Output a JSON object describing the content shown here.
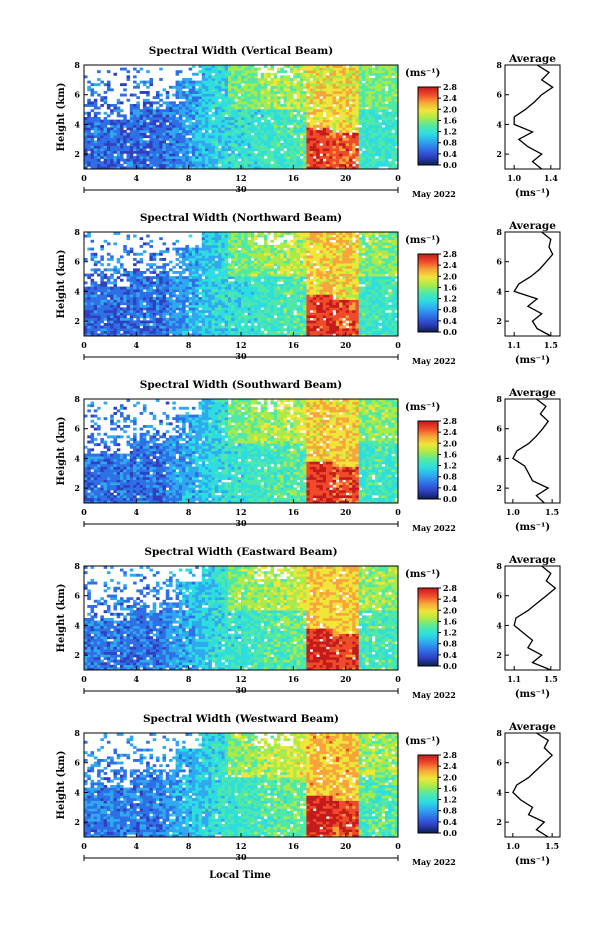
{
  "figure": {
    "xlabel": "Local Time",
    "month_label": "May 2022",
    "day_label": "30",
    "avg_title": "Average",
    "avg_xlabel": "(ms⁻¹)",
    "colorbar_unit": "(ms⁻¹)",
    "colorbar_ticks": [
      "0.0",
      "0.4",
      "0.8",
      "1.2",
      "1.6",
      "2.0",
      "2.4",
      "2.8"
    ],
    "colorbar_stops": [
      "#0b1f4f",
      "#2f3fbf",
      "#2f6fe6",
      "#2fa8f0",
      "#2ddde0",
      "#4fe8a8",
      "#a8ea4a",
      "#f0e63a",
      "#f7a53a",
      "#ef4b2b",
      "#c41a1a"
    ],
    "height_label": "Height (km)"
  },
  "chart_data": [
    {
      "type": "heatmap",
      "title": "Spectral Width (Vertical Beam)",
      "xlabel": "Local Time",
      "ylabel": "Height (km)",
      "x_ticks": [
        "0",
        "4",
        "8",
        "12",
        "16",
        "20",
        "0"
      ],
      "y_ticks": [
        "2",
        "4",
        "6",
        "8"
      ],
      "xlim": [
        0,
        24
      ],
      "ylim": [
        1,
        8
      ],
      "colorbar": {
        "label": "(ms⁻¹)",
        "range": [
          0.0,
          2.8
        ]
      },
      "average": {
        "title": "Average",
        "xlabel": "(ms⁻¹)",
        "x_ticks": [
          "1.0",
          "1.4"
        ],
        "xlim": [
          0.9,
          1.5
        ],
        "heights": [
          1,
          1.5,
          2,
          2.5,
          3,
          3.5,
          4,
          4.5,
          5,
          5.5,
          6,
          6.5,
          7,
          7.5,
          8
        ],
        "values": [
          1.3,
          1.2,
          1.3,
          1.15,
          1.05,
          1.2,
          1.0,
          1.0,
          1.12,
          1.22,
          1.3,
          1.42,
          1.3,
          1.38,
          1.25
        ]
      }
    },
    {
      "type": "heatmap",
      "title": "Spectral Width (Northward Beam)",
      "xlabel": "Local Time",
      "ylabel": "Height (km)",
      "x_ticks": [
        "0",
        "4",
        "8",
        "12",
        "16",
        "20",
        "0"
      ],
      "y_ticks": [
        "2",
        "4",
        "6",
        "8"
      ],
      "xlim": [
        0,
        24
      ],
      "ylim": [
        1,
        8
      ],
      "colorbar": {
        "label": "(ms⁻¹)",
        "range": [
          0.0,
          2.8
        ]
      },
      "average": {
        "title": "Average",
        "xlabel": "(ms⁻¹)",
        "x_ticks": [
          "1.1",
          "1.5"
        ],
        "xlim": [
          1.0,
          1.6
        ],
        "heights": [
          1,
          1.5,
          2,
          2.5,
          3,
          3.5,
          4,
          4.5,
          5,
          5.5,
          6,
          6.5,
          7,
          7.5,
          8
        ],
        "values": [
          1.5,
          1.35,
          1.3,
          1.4,
          1.25,
          1.35,
          1.1,
          1.15,
          1.28,
          1.38,
          1.45,
          1.52,
          1.48,
          1.5,
          1.4
        ]
      }
    },
    {
      "type": "heatmap",
      "title": "Spectral Width (Southward Beam)",
      "xlabel": "Local Time",
      "ylabel": "Height (km)",
      "x_ticks": [
        "0",
        "4",
        "8",
        "12",
        "16",
        "20",
        "0"
      ],
      "y_ticks": [
        "2",
        "4",
        "6",
        "8"
      ],
      "xlim": [
        0,
        24
      ],
      "ylim": [
        1,
        8
      ],
      "colorbar": {
        "label": "(ms⁻¹)",
        "range": [
          0.0,
          2.8
        ]
      },
      "average": {
        "title": "Average",
        "xlabel": "(ms⁻¹)",
        "x_ticks": [
          "1.0",
          "1.5"
        ],
        "xlim": [
          0.9,
          1.6
        ],
        "heights": [
          1,
          1.5,
          2,
          2.5,
          3,
          3.5,
          4,
          4.5,
          5,
          5.5,
          6,
          6.5,
          7,
          7.5,
          8
        ],
        "values": [
          1.4,
          1.3,
          1.45,
          1.25,
          1.2,
          1.15,
          1.0,
          1.05,
          1.2,
          1.3,
          1.38,
          1.45,
          1.35,
          1.42,
          1.3
        ]
      }
    },
    {
      "type": "heatmap",
      "title": "Spectral Width (Eastward Beam)",
      "xlabel": "Local Time",
      "ylabel": "Height (km)",
      "x_ticks": [
        "0",
        "4",
        "8",
        "12",
        "16",
        "20",
        "0"
      ],
      "y_ticks": [
        "2",
        "4",
        "6",
        "8"
      ],
      "xlim": [
        0,
        24
      ],
      "ylim": [
        1,
        8
      ],
      "colorbar": {
        "label": "(ms⁻¹)",
        "range": [
          0.0,
          2.8
        ]
      },
      "average": {
        "title": "Average",
        "xlabel": "(ms⁻¹)",
        "x_ticks": [
          "1.1",
          "1.5"
        ],
        "xlim": [
          1.0,
          1.6
        ],
        "heights": [
          1,
          1.5,
          2,
          2.5,
          3,
          3.5,
          4,
          4.5,
          5,
          5.5,
          6,
          6.5,
          7,
          7.5,
          8
        ],
        "values": [
          1.5,
          1.3,
          1.4,
          1.25,
          1.3,
          1.2,
          1.1,
          1.12,
          1.25,
          1.35,
          1.45,
          1.55,
          1.45,
          1.5,
          1.4
        ]
      }
    },
    {
      "type": "heatmap",
      "title": "Spectral Width (Westward Beam)",
      "xlabel": "Local Time",
      "ylabel": "Height (km)",
      "x_ticks": [
        "0",
        "4",
        "8",
        "12",
        "16",
        "20",
        "0"
      ],
      "y_ticks": [
        "2",
        "4",
        "6",
        "8"
      ],
      "xlim": [
        0,
        24
      ],
      "ylim": [
        1,
        8
      ],
      "colorbar": {
        "label": "(ms⁻¹)",
        "range": [
          0.0,
          2.8
        ]
      },
      "average": {
        "title": "Average",
        "xlabel": "(ms⁻¹)",
        "x_ticks": [
          "1.0",
          "1.5"
        ],
        "xlim": [
          0.9,
          1.6
        ],
        "heights": [
          1,
          1.5,
          2,
          2.5,
          3,
          3.5,
          4,
          4.5,
          5,
          5.5,
          6,
          6.5,
          7,
          7.5,
          8
        ],
        "values": [
          1.45,
          1.3,
          1.4,
          1.2,
          1.25,
          1.1,
          1.0,
          1.05,
          1.2,
          1.3,
          1.4,
          1.5,
          1.4,
          1.45,
          1.3
        ]
      }
    }
  ]
}
